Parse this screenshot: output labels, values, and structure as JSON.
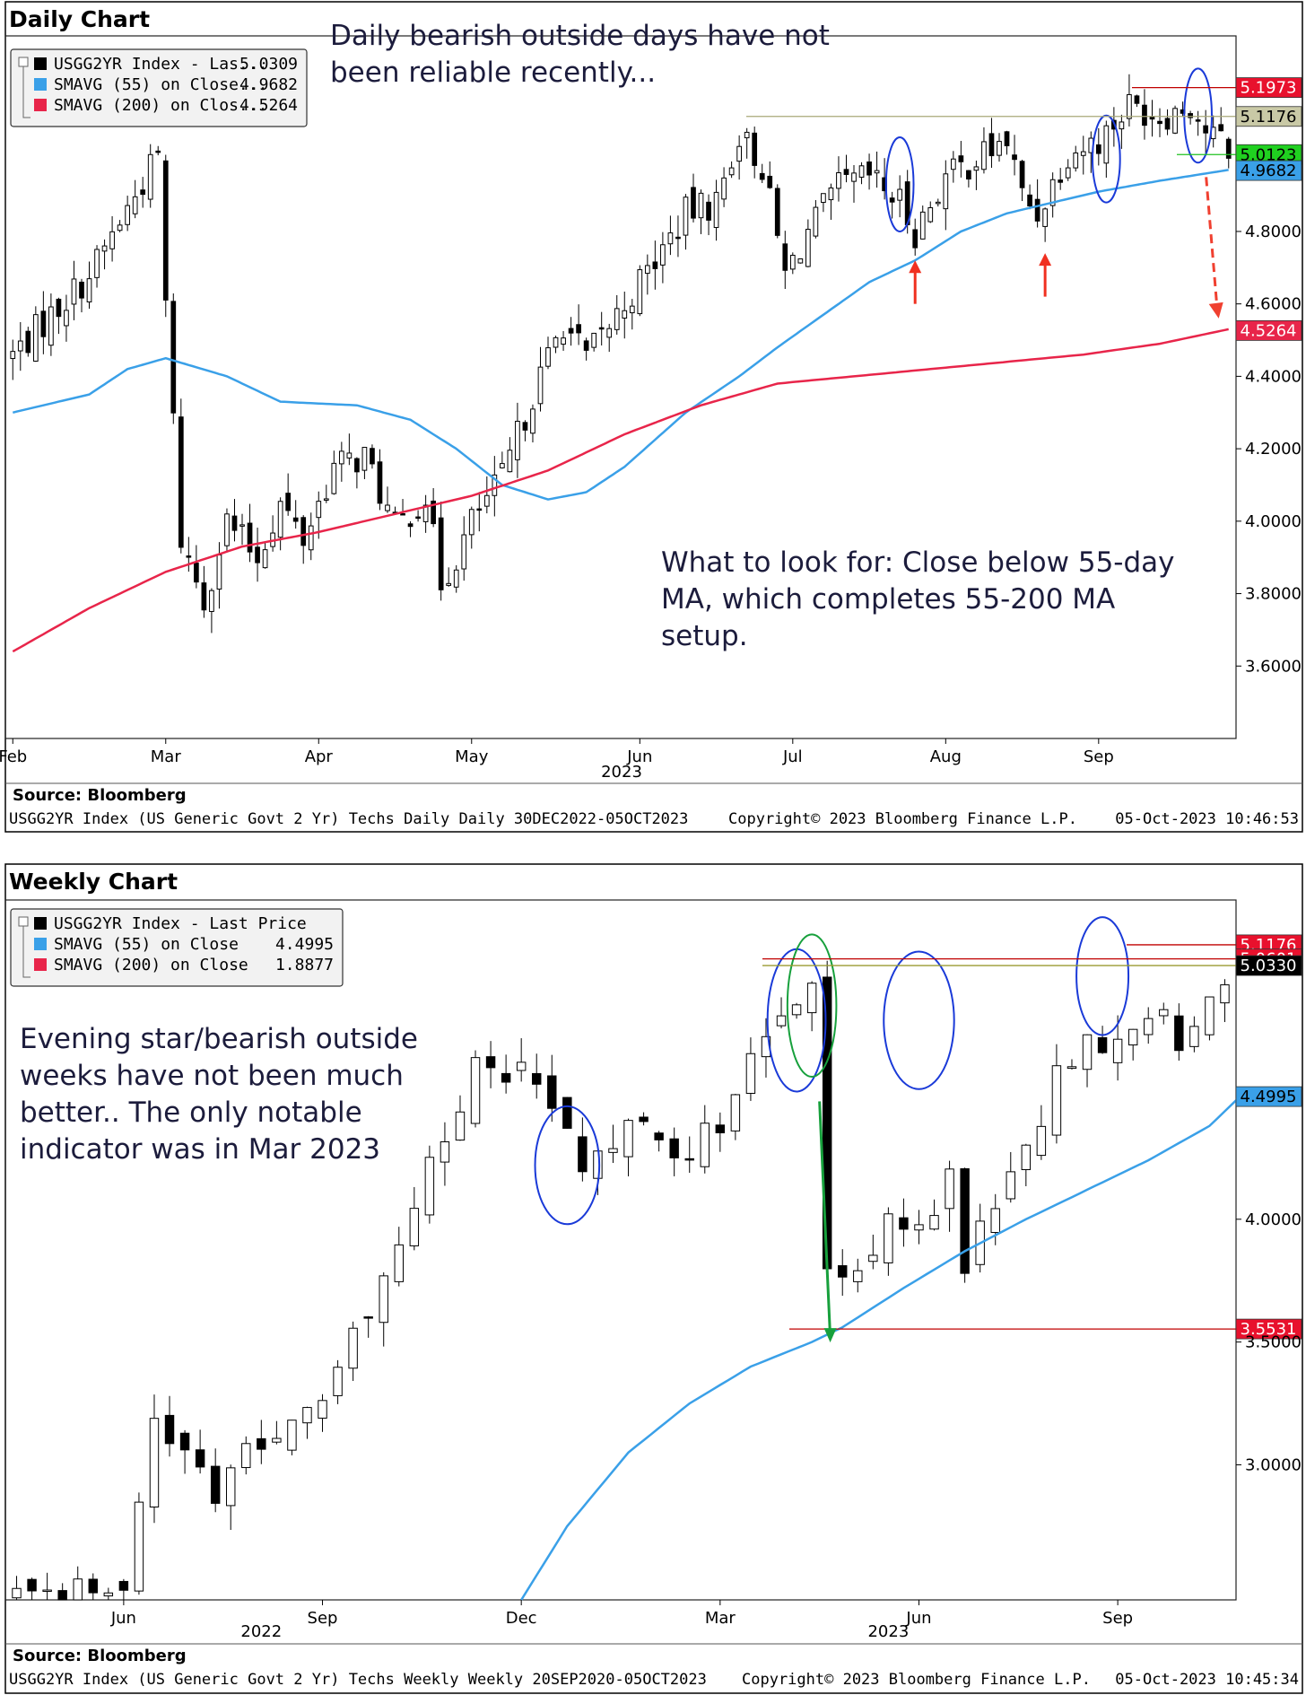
{
  "chart_data": [
    {
      "type": "candlestick",
      "title": "Daily Chart",
      "annotation_top": [
        "Daily bearish outside days have not",
        "been reliable recently..."
      ],
      "annotation_bottom": [
        "What to look for: Close below 55-day",
        "MA, which completes 55-200 MA",
        "setup."
      ],
      "legend": [
        {
          "label": "USGG2YR Index - Las...",
          "value": "5.0309",
          "color": "#000000"
        },
        {
          "label": "SMAVG (55)  on Close...",
          "value": "4.9682",
          "color": "#3aa0e8"
        },
        {
          "label": "SMAVG (200)  on Clos...",
          "value": "4.5264",
          "color": "#e8254a"
        }
      ],
      "y_ticks": [
        "4.8000",
        "4.6000",
        "4.4000",
        "4.2000",
        "4.0000",
        "3.8000",
        "3.6000"
      ],
      "y_tick_values": [
        4.8,
        4.6,
        4.4,
        4.2,
        4.0,
        3.8,
        3.6
      ],
      "ylim": [
        3.4,
        5.34
      ],
      "x_ticks": [
        "Feb",
        "Mar",
        "Apr",
        "May",
        "Jun",
        "Jul",
        "Aug",
        "Sep"
      ],
      "x_tick_index": [
        0,
        20,
        40,
        60,
        82,
        102,
        122,
        142
      ],
      "x_year": "2023",
      "n_days": 160,
      "price_tags": [
        {
          "value": "5.1973",
          "v": 5.1973,
          "bg": "#e8112d",
          "fg": "#ffffff",
          "line": "#c00000"
        },
        {
          "value": "5.1176",
          "v": 5.1176,
          "bg": "#c9c9a6",
          "fg": "#000000",
          "line": "#a8a878"
        },
        {
          "value": "5.0123",
          "v": 5.0123,
          "bg": "#20d020",
          "fg": "#000000",
          "line": "#20c020"
        },
        {
          "value": "4.9682",
          "v": 4.9682,
          "bg": "#3aa0e8",
          "fg": "#000000",
          "line": null
        },
        {
          "value": "4.5264",
          "v": 4.5264,
          "bg": "#e8254a",
          "fg": "#ffffff",
          "line": null
        }
      ],
      "close_anchors": [
        [
          0,
          4.46
        ],
        [
          10,
          4.68
        ],
        [
          19,
          5.01
        ],
        [
          20,
          4.6
        ],
        [
          22,
          3.95
        ],
        [
          25,
          3.78
        ],
        [
          28,
          4.0
        ],
        [
          32,
          3.9
        ],
        [
          35,
          4.05
        ],
        [
          38,
          3.95
        ],
        [
          42,
          4.15
        ],
        [
          46,
          4.18
        ],
        [
          50,
          3.98
        ],
        [
          54,
          4.07
        ],
        [
          56,
          3.83
        ],
        [
          58,
          3.9
        ],
        [
          60,
          4.0
        ],
        [
          64,
          4.12
        ],
        [
          68,
          4.35
        ],
        [
          72,
          4.55
        ],
        [
          75,
          4.45
        ],
        [
          80,
          4.6
        ],
        [
          85,
          4.75
        ],
        [
          88,
          4.85
        ],
        [
          92,
          4.88
        ],
        [
          95,
          5.07
        ],
        [
          98,
          4.98
        ],
        [
          101,
          4.68
        ],
        [
          104,
          4.8
        ],
        [
          108,
          4.92
        ],
        [
          112,
          4.95
        ],
        [
          116,
          4.88
        ],
        [
          118,
          4.8
        ],
        [
          122,
          4.95
        ],
        [
          126,
          5.0
        ],
        [
          130,
          5.05
        ],
        [
          132,
          4.9
        ],
        [
          134,
          4.85
        ],
        [
          138,
          5.02
        ],
        [
          142,
          5.05
        ],
        [
          146,
          5.15
        ],
        [
          150,
          5.12
        ],
        [
          154,
          5.15
        ],
        [
          156,
          5.08
        ],
        [
          159,
          5.03
        ]
      ],
      "sma55_anchors": [
        [
          0,
          4.3
        ],
        [
          10,
          4.35
        ],
        [
          15,
          4.42
        ],
        [
          20,
          4.45
        ],
        [
          28,
          4.4
        ],
        [
          35,
          4.33
        ],
        [
          45,
          4.32
        ],
        [
          52,
          4.28
        ],
        [
          58,
          4.2
        ],
        [
          64,
          4.1
        ],
        [
          70,
          4.06
        ],
        [
          75,
          4.08
        ],
        [
          80,
          4.15
        ],
        [
          88,
          4.3
        ],
        [
          95,
          4.4
        ],
        [
          100,
          4.48
        ],
        [
          106,
          4.57
        ],
        [
          112,
          4.66
        ],
        [
          118,
          4.72
        ],
        [
          124,
          4.8
        ],
        [
          130,
          4.85
        ],
        [
          136,
          4.88
        ],
        [
          142,
          4.91
        ],
        [
          150,
          4.94
        ],
        [
          159,
          4.97
        ]
      ],
      "sma200_anchors": [
        [
          0,
          3.64
        ],
        [
          10,
          3.76
        ],
        [
          20,
          3.86
        ],
        [
          30,
          3.93
        ],
        [
          40,
          3.97
        ],
        [
          50,
          4.02
        ],
        [
          60,
          4.07
        ],
        [
          70,
          4.14
        ],
        [
          80,
          4.24
        ],
        [
          90,
          4.32
        ],
        [
          100,
          4.38
        ],
        [
          110,
          4.4
        ],
        [
          120,
          4.42
        ],
        [
          130,
          4.44
        ],
        [
          140,
          4.46
        ],
        [
          150,
          4.49
        ],
        [
          159,
          4.53
        ]
      ],
      "ellipses": [
        [
          116,
          4.93,
          1.8,
          0.13
        ],
        [
          143,
          5.0,
          1.8,
          0.12
        ],
        [
          155,
          5.12,
          1.8,
          0.13
        ]
      ],
      "arrows": [
        [
          118,
          4.6,
          4.72
        ],
        [
          135,
          4.62,
          4.74
        ]
      ],
      "source": "Source:  Bloomberg",
      "footer_left": "USGG2YR Index (US Generic Govt 2 Yr) Techs Daily  Daily 30DEC2022-05OCT2023",
      "footer_mid": "Copyright© 2023 Bloomberg Finance L.P.",
      "footer_right": "05-Oct-2023 10:46:53"
    },
    {
      "type": "candlestick",
      "title": "Weekly Chart",
      "annotation": [
        "Evening star/bearish outside",
        "weeks have not been much",
        "better.. The only notable",
        "indicator was in Mar 2023"
      ],
      "legend": [
        {
          "label": "USGG2YR Index - Last Price",
          "value": "",
          "color": "#000000"
        },
        {
          "label": "SMAVG (55)  on Close",
          "value": "4.4995",
          "color": "#3aa0e8"
        },
        {
          "label": "SMAVG (200)  on Close",
          "value": "1.8877",
          "color": "#e8254a"
        }
      ],
      "y_ticks": [
        "4.0000",
        "3.5000",
        "3.0000"
      ],
      "y_tick_values": [
        4.0,
        3.5,
        3.0
      ],
      "ylim": [
        2.45,
        5.3
      ],
      "x_ticks": [
        "Jun",
        "Sep",
        "Dec",
        "Mar",
        "Jun",
        "Sep"
      ],
      "x_tick_index": [
        7,
        20,
        33,
        46,
        59,
        72
      ],
      "x_years": [
        "2022",
        "2023"
      ],
      "x_year_index": [
        16,
        57
      ],
      "n_weeks": 80,
      "price_tags": [
        {
          "value": "5.1176",
          "v": 5.1176,
          "bg": "#e8112d",
          "fg": "#ffffff",
          "line": "#c00000"
        },
        {
          "value": "5.0601",
          "v": 5.0601,
          "bg": "#e8112d",
          "fg": "#ffffff",
          "line": "#c00000"
        },
        {
          "value": "5.0330",
          "v": 5.033,
          "bg": "#000000",
          "fg": "#ffffff",
          "line": "#9a9a30"
        },
        {
          "value": "4.4995",
          "v": 4.4995,
          "bg": "#3aa0e8",
          "fg": "#000000",
          "line": null
        },
        {
          "value": "3.5531",
          "v": 3.5531,
          "bg": "#e8112d",
          "fg": "#ffffff",
          "line": "#c00000"
        }
      ],
      "close_anchors": [
        [
          0,
          2.45
        ],
        [
          4,
          2.47
        ],
        [
          7,
          2.52
        ],
        [
          9,
          3.2
        ],
        [
          11,
          3.0
        ],
        [
          13,
          2.9
        ],
        [
          15,
          3.15
        ],
        [
          17,
          3.05
        ],
        [
          19,
          3.25
        ],
        [
          21,
          3.4
        ],
        [
          23,
          3.6
        ],
        [
          25,
          3.88
        ],
        [
          27,
          4.2
        ],
        [
          29,
          4.42
        ],
        [
          30,
          4.6
        ],
        [
          32,
          4.55
        ],
        [
          34,
          4.6
        ],
        [
          36,
          4.3
        ],
        [
          38,
          4.2
        ],
        [
          40,
          4.45
        ],
        [
          42,
          4.25
        ],
        [
          44,
          4.25
        ],
        [
          46,
          4.42
        ],
        [
          48,
          4.62
        ],
        [
          50,
          4.82
        ],
        [
          52,
          5.0
        ],
        [
          53,
          3.85
        ],
        [
          55,
          3.75
        ],
        [
          57,
          4.05
        ],
        [
          59,
          3.95
        ],
        [
          61,
          4.15
        ],
        [
          62,
          3.85
        ],
        [
          64,
          4.0
        ],
        [
          66,
          4.25
        ],
        [
          68,
          4.6
        ],
        [
          70,
          4.72
        ],
        [
          72,
          4.78
        ],
        [
          74,
          4.82
        ],
        [
          76,
          4.75
        ],
        [
          78,
          4.95
        ],
        [
          80,
          5.05
        ]
      ],
      "sma55_anchors": [
        [
          33,
          2.45
        ],
        [
          36,
          2.75
        ],
        [
          40,
          3.05
        ],
        [
          44,
          3.25
        ],
        [
          48,
          3.4
        ],
        [
          52,
          3.5
        ],
        [
          54,
          3.56
        ],
        [
          58,
          3.72
        ],
        [
          62,
          3.87
        ],
        [
          66,
          4.0
        ],
        [
          70,
          4.12
        ],
        [
          74,
          4.24
        ],
        [
          78,
          4.38
        ],
        [
          80,
          4.5
        ]
      ],
      "ellipses": [
        [
          36,
          4.22,
          2.1,
          0.24
        ],
        [
          51,
          4.81,
          1.9,
          0.29
        ],
        [
          59,
          4.81,
          2.3,
          0.28
        ],
        [
          71,
          4.99,
          1.7,
          0.24
        ]
      ],
      "source": "Source:  Bloomberg",
      "footer_left": "USGG2YR Index (US Generic Govt 2 Yr) Techs Weekly  Weekly 20SEP2020-05OCT2023",
      "footer_mid": "Copyright© 2023 Bloomberg Finance L.P.",
      "footer_right": "05-Oct-2023 10:45:34"
    }
  ]
}
